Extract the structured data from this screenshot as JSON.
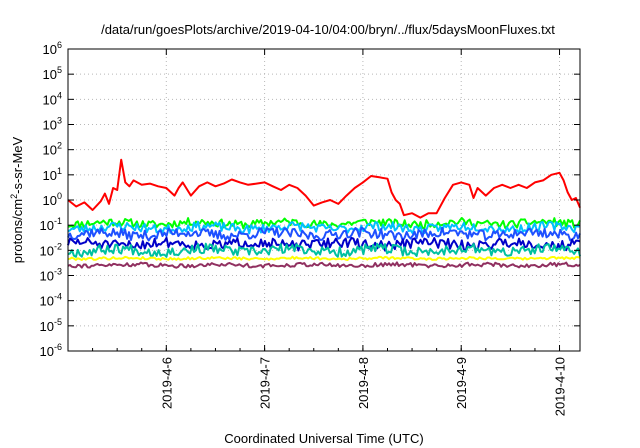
{
  "chart_data": {
    "type": "line",
    "title": "/data/run/goesPlots/archive/2019-04-10/04:00/bryn/../flux/5daysMoonFluxes.txt",
    "xlabel": "Coordinated Universal Time (UTC)",
    "ylabel_parts": {
      "pre": "protons/cm",
      "sup": "2",
      "post": "-s-sr-MeV"
    },
    "y_scale": "log",
    "ylim": [
      1e-06,
      1000000.0
    ],
    "y_ticks": [
      {
        "v": 1e-06,
        "base": "10",
        "exp": "-6"
      },
      {
        "v": 1e-05,
        "base": "10",
        "exp": "-5"
      },
      {
        "v": 0.0001,
        "base": "10",
        "exp": "-4"
      },
      {
        "v": 0.001,
        "base": "10",
        "exp": "-3"
      },
      {
        "v": 0.01,
        "base": "10",
        "exp": "-2"
      },
      {
        "v": 0.1,
        "base": "10",
        "exp": "-1"
      },
      {
        "v": 1,
        "base": "10",
        "exp": "0"
      },
      {
        "v": 10.0,
        "base": "10",
        "exp": "1"
      },
      {
        "v": 100.0,
        "base": "10",
        "exp": "2"
      },
      {
        "v": 1000.0,
        "base": "10",
        "exp": "3"
      },
      {
        "v": 10000.0,
        "base": "10",
        "exp": "4"
      },
      {
        "v": 100000.0,
        "base": "10",
        "exp": "5"
      },
      {
        "v": 1000000.0,
        "base": "10",
        "exp": "6"
      }
    ],
    "xlim": [
      "2019-04-05T00:00",
      "2019-04-10T05:00"
    ],
    "x_ticks": [
      {
        "t": "2019-04-06T00:00",
        "label": "2019-4-6"
      },
      {
        "t": "2019-04-07T00:00",
        "label": "2019-4-7"
      },
      {
        "t": "2019-04-08T00:00",
        "label": "2019-4-8"
      },
      {
        "t": "2019-04-09T00:00",
        "label": "2019-4-9"
      },
      {
        "t": "2019-04-10T00:00",
        "label": "2019-4-10"
      }
    ],
    "grid": true,
    "series": [
      {
        "color": "#ff0000",
        "width": 2,
        "points": [
          [
            "2019-04-05T00:00",
            1.0
          ],
          [
            "2019-04-05T02:00",
            0.55
          ],
          [
            "2019-04-05T04:00",
            0.8
          ],
          [
            "2019-04-05T06:00",
            0.4
          ],
          [
            "2019-04-05T08:00",
            0.9
          ],
          [
            "2019-04-05T09:00",
            1.8
          ],
          [
            "2019-04-05T10:00",
            0.7
          ],
          [
            "2019-04-05T11:00",
            3.0
          ],
          [
            "2019-04-05T12:00",
            2.5
          ],
          [
            "2019-04-05T13:00",
            40
          ],
          [
            "2019-04-05T14:00",
            5
          ],
          [
            "2019-04-05T15:00",
            3.5
          ],
          [
            "2019-04-05T16:00",
            6
          ],
          [
            "2019-04-05T18:00",
            4
          ],
          [
            "2019-04-05T20:00",
            4.5
          ],
          [
            "2019-04-05T22:00",
            3.5
          ],
          [
            "2019-04-06T00:00",
            3.0
          ],
          [
            "2019-04-06T02:00",
            1.5
          ],
          [
            "2019-04-06T03:00",
            3.0
          ],
          [
            "2019-04-06T04:00",
            5
          ],
          [
            "2019-04-06T06:00",
            1.5
          ],
          [
            "2019-04-06T08:00",
            3.5
          ],
          [
            "2019-04-06T10:00",
            5
          ],
          [
            "2019-04-06T12:00",
            3.5
          ],
          [
            "2019-04-06T14:00",
            4.5
          ],
          [
            "2019-04-06T16:00",
            6.5
          ],
          [
            "2019-04-06T18:00",
            5
          ],
          [
            "2019-04-06T20:00",
            4
          ],
          [
            "2019-04-06T22:00",
            4.5
          ],
          [
            "2019-04-07T00:00",
            5
          ],
          [
            "2019-04-07T02:00",
            3.5
          ],
          [
            "2019-04-07T04:00",
            2.5
          ],
          [
            "2019-04-07T06:00",
            4
          ],
          [
            "2019-04-07T08:00",
            3
          ],
          [
            "2019-04-07T10:00",
            1.5
          ],
          [
            "2019-04-07T12:00",
            0.6
          ],
          [
            "2019-04-07T14:00",
            0.8
          ],
          [
            "2019-04-07T16:00",
            1.0
          ],
          [
            "2019-04-07T18:00",
            0.7
          ],
          [
            "2019-04-07T20:00",
            1.5
          ],
          [
            "2019-04-07T22:00",
            3
          ],
          [
            "2019-04-08T00:00",
            5
          ],
          [
            "2019-04-08T02:00",
            9
          ],
          [
            "2019-04-08T04:00",
            8
          ],
          [
            "2019-04-08T06:00",
            7
          ],
          [
            "2019-04-08T07:00",
            2
          ],
          [
            "2019-04-08T08:00",
            1.0
          ],
          [
            "2019-04-08T09:00",
            0.7
          ],
          [
            "2019-04-08T10:00",
            0.25
          ],
          [
            "2019-04-08T12:00",
            0.3
          ],
          [
            "2019-04-08T14:00",
            0.2
          ],
          [
            "2019-04-08T16:00",
            0.3
          ],
          [
            "2019-04-08T18:00",
            0.3
          ],
          [
            "2019-04-08T20:00",
            1.2
          ],
          [
            "2019-04-08T22:00",
            4
          ],
          [
            "2019-04-09T00:00",
            5
          ],
          [
            "2019-04-09T02:00",
            4
          ],
          [
            "2019-04-09T03:00",
            1.2
          ],
          [
            "2019-04-09T04:00",
            3
          ],
          [
            "2019-04-09T06:00",
            1.5
          ],
          [
            "2019-04-09T08:00",
            3
          ],
          [
            "2019-04-09T10:00",
            4
          ],
          [
            "2019-04-09T12:00",
            3
          ],
          [
            "2019-04-09T14:00",
            4
          ],
          [
            "2019-04-09T16:00",
            3
          ],
          [
            "2019-04-09T18:00",
            5
          ],
          [
            "2019-04-09T20:00",
            6
          ],
          [
            "2019-04-09T22:00",
            10
          ],
          [
            "2019-04-10T00:00",
            12
          ],
          [
            "2019-04-10T01:00",
            6
          ],
          [
            "2019-04-10T02:00",
            2
          ],
          [
            "2019-04-10T03:00",
            1.0
          ],
          [
            "2019-04-10T04:00",
            1.2
          ],
          [
            "2019-04-10T05:00",
            0.5
          ]
        ]
      },
      {
        "color": "#00ff00",
        "width": 2,
        "base": 0.12,
        "amp": 0.16,
        "seed": 11
      },
      {
        "color": "#00c0ff",
        "width": 2,
        "base": 0.08,
        "amp": 0.18,
        "seed": 23
      },
      {
        "color": "#1e50ff",
        "width": 2,
        "base": 0.045,
        "amp": 0.2,
        "seed": 37
      },
      {
        "color": "#0000c8",
        "width": 2,
        "base": 0.018,
        "amp": 0.2,
        "seed": 51
      },
      {
        "color": "#00c0a0",
        "width": 2,
        "base": 0.01,
        "amp": 0.2,
        "seed": 67
      },
      {
        "color": "#ffff00",
        "width": 2,
        "base": 0.0048,
        "amp": 0.05,
        "seed": 79
      },
      {
        "color": "#903060",
        "width": 2,
        "base": 0.0026,
        "amp": 0.08,
        "seed": 91
      }
    ]
  }
}
